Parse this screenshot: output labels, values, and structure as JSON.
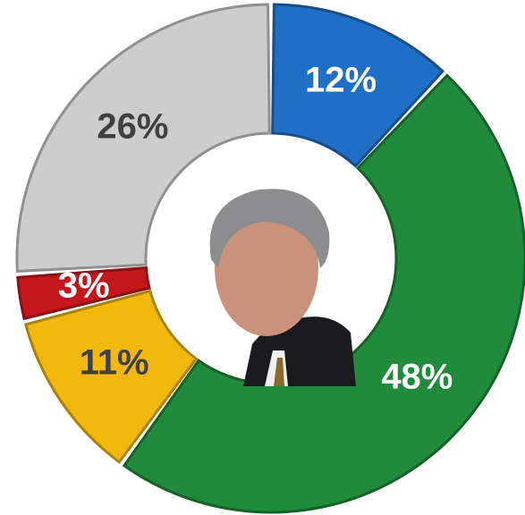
{
  "chart_data": {
    "type": "pie",
    "categories": [
      null,
      null,
      null,
      null,
      null
    ],
    "values": [
      12,
      48,
      11,
      3,
      26
    ],
    "value_labels": [
      "12%",
      "48%",
      "11%",
      "3%",
      "26%"
    ],
    "colors": [
      "#1f6fc6",
      "#1f8b3b",
      "#f2b90c",
      "#c4171c",
      "#cdcdcd"
    ],
    "donut": true
  }
}
